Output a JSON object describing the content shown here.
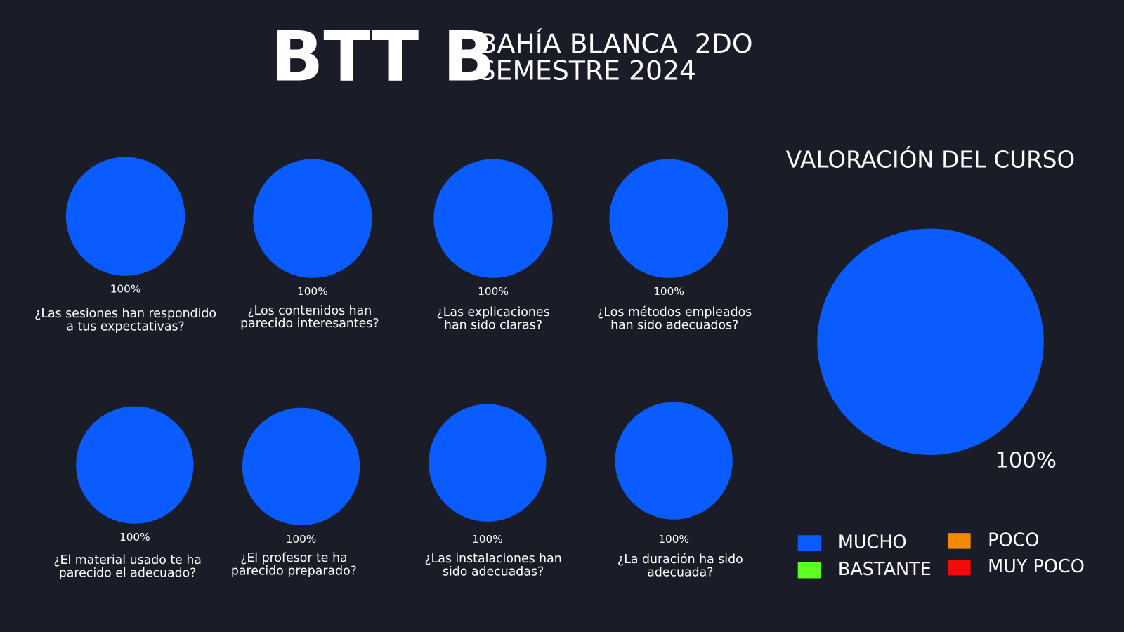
{
  "header": {
    "title": "BTT B",
    "subtitle": [
      "BAHÍA BLANCA  2DO",
      "SEMESTRE 2024"
    ]
  },
  "chart_data": [
    {
      "type": "pie",
      "title": [
        "¿Las sesiones han respondido",
        "a tus expectativas?"
      ],
      "categories": [
        "MUCHO",
        "BASTANTE",
        "POCO",
        "MUY POCO"
      ],
      "colors": [
        "#0a5cff",
        "#5dff1f",
        "#f28a00",
        "#f50a0a"
      ],
      "values": [
        100,
        0,
        0,
        0
      ],
      "value_labels": [
        "100%",
        null,
        null,
        null
      ]
    },
    {
      "type": "pie",
      "title": [
        "¿Los contenidos han",
        "parecido interesantes?"
      ],
      "categories": [
        "MUCHO",
        "BASTANTE",
        "POCO",
        "MUY POCO"
      ],
      "colors": [
        "#0a5cff",
        "#5dff1f",
        "#f28a00",
        "#f50a0a"
      ],
      "values": [
        100,
        0,
        0,
        0
      ],
      "value_labels": [
        "100%",
        null,
        null,
        null
      ]
    },
    {
      "type": "pie",
      "title": [
        "¿Las explicaciones",
        "han sido claras?"
      ],
      "categories": [
        "MUCHO",
        "BASTANTE",
        "POCO",
        "MUY POCO"
      ],
      "colors": [
        "#0a5cff",
        "#5dff1f",
        "#f28a00",
        "#f50a0a"
      ],
      "values": [
        100,
        0,
        0,
        0
      ],
      "value_labels": [
        "100%",
        null,
        null,
        null
      ]
    },
    {
      "type": "pie",
      "title": [
        "¿Los métodos empleados",
        "han sido adecuados?"
      ],
      "categories": [
        "MUCHO",
        "BASTANTE",
        "POCO",
        "MUY POCO"
      ],
      "colors": [
        "#0a5cff",
        "#5dff1f",
        "#f28a00",
        "#f50a0a"
      ],
      "values": [
        100,
        0,
        0,
        0
      ],
      "value_labels": [
        "100%",
        null,
        null,
        null
      ]
    },
    {
      "type": "pie",
      "title": [
        "¿El material usado te ha",
        "parecido el adecuado?"
      ],
      "categories": [
        "MUCHO",
        "BASTANTE",
        "POCO",
        "MUY POCO"
      ],
      "colors": [
        "#0a5cff",
        "#5dff1f",
        "#f28a00",
        "#f50a0a"
      ],
      "values": [
        100,
        0,
        0,
        0
      ],
      "value_labels": [
        "100%",
        null,
        null,
        null
      ]
    },
    {
      "type": "pie",
      "title": [
        "¿El profesor te ha",
        "parecido preparado?"
      ],
      "categories": [
        "MUCHO",
        "BASTANTE",
        "POCO",
        "MUY POCO"
      ],
      "colors": [
        "#0a5cff",
        "#5dff1f",
        "#f28a00",
        "#f50a0a"
      ],
      "values": [
        100,
        0,
        0,
        0
      ],
      "value_labels": [
        "100%",
        null,
        null,
        null
      ]
    },
    {
      "type": "pie",
      "title": [
        "¿Las instalaciones han",
        "sido adecuadas?"
      ],
      "categories": [
        "MUCHO",
        "BASTANTE",
        "POCO",
        "MUY POCO"
      ],
      "colors": [
        "#0a5cff",
        "#5dff1f",
        "#f28a00",
        "#f50a0a"
      ],
      "values": [
        100,
        0,
        0,
        0
      ],
      "value_labels": [
        "100%",
        null,
        null,
        null
      ]
    },
    {
      "type": "pie",
      "title": [
        "¿La duración ha sido",
        "adecuada?"
      ],
      "categories": [
        "MUCHO",
        "BASTANTE",
        "POCO",
        "MUY POCO"
      ],
      "colors": [
        "#0a5cff",
        "#5dff1f",
        "#f28a00",
        "#f50a0a"
      ],
      "values": [
        100,
        0,
        0,
        0
      ],
      "value_labels": [
        "100%",
        null,
        null,
        null
      ]
    },
    {
      "type": "pie",
      "title": [
        "VALORACIÓN DEL CURSO"
      ],
      "categories": [
        "MUCHO",
        "BASTANTE",
        "POCO",
        "MUY POCO"
      ],
      "colors": [
        "#0a5cff",
        "#5dff1f",
        "#f28a00",
        "#f50a0a"
      ],
      "values": [
        100,
        0,
        0,
        0
      ],
      "value_labels": [
        "100%",
        null,
        null,
        null
      ],
      "legend": true
    }
  ]
}
